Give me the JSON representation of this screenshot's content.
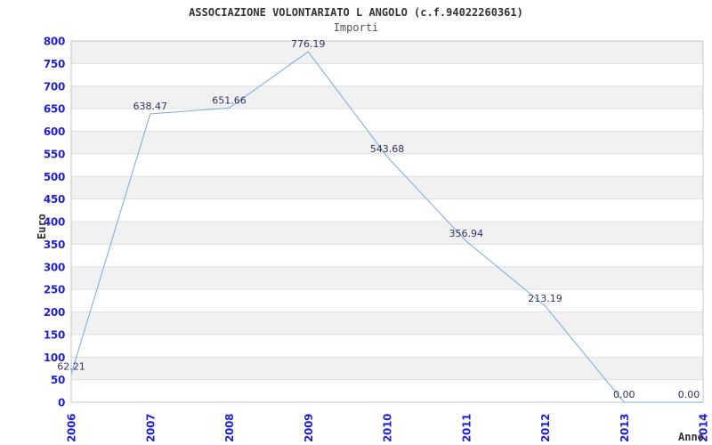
{
  "header": {
    "title": "ASSOCIAZIONE VOLONTARIATO L ANGOLO (c.f.94022260361)",
    "subtitle": "Importi"
  },
  "chart_data": {
    "type": "line",
    "title": "ASSOCIAZIONE VOLONTARIATO L ANGOLO (c.f.94022260361)",
    "subtitle": "Importi",
    "categories": [
      "2006",
      "2007",
      "2008",
      "2009",
      "2010",
      "2011",
      "2012",
      "2013",
      "2014"
    ],
    "series": [
      {
        "name": "Importi",
        "values": [
          62.21,
          638.47,
          651.66,
          776.19,
          543.68,
          356.94,
          213.19,
          0.0,
          0.0
        ]
      }
    ],
    "point_label_decimals": 2,
    "xlabel": "Anno",
    "ylabel": "Euro",
    "ylim": [
      0,
      800
    ],
    "ytick_step": 50,
    "grid": true,
    "legend_position": "none",
    "band_fill": "alternating-horizontal",
    "colors": {
      "line": "#7aaade",
      "tick_label": "#2222cc",
      "point_label": "#333366",
      "band_gray": "#f1f1f1",
      "band_white": "#ffffff",
      "grid_line": "#e0e0e0",
      "border": "#c8c8c8",
      "title": "#333333",
      "subtitle": "#555555",
      "axis_title": "#333333",
      "background": "#ffffff"
    }
  }
}
